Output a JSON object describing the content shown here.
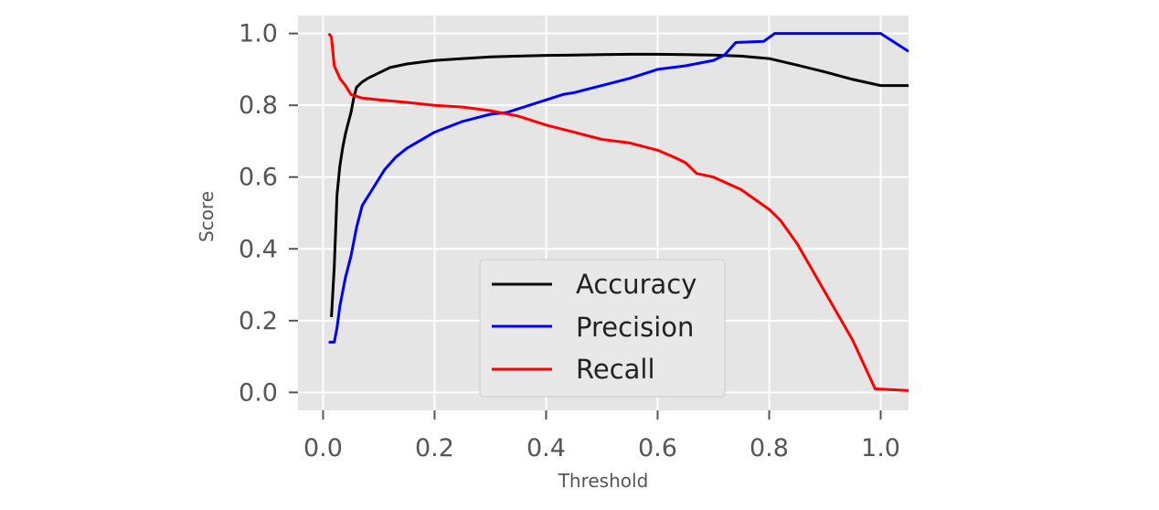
{
  "chart_data": {
    "type": "line",
    "xlabel": "Threshold",
    "ylabel": "Score",
    "xlim": [
      -0.045,
      1.05
    ],
    "ylim": [
      -0.05,
      1.05
    ],
    "xticks": [
      0.0,
      0.2,
      0.4,
      0.6,
      0.8,
      1.0
    ],
    "yticks": [
      0.0,
      0.2,
      0.4,
      0.6,
      0.8,
      1.0
    ],
    "xtick_labels": [
      "0.0",
      "0.2",
      "0.4",
      "0.6",
      "0.8",
      "1.0"
    ],
    "ytick_labels": [
      "0.0",
      "0.2",
      "0.4",
      "0.6",
      "0.8",
      "1.0"
    ],
    "grid": true,
    "legend_position": "lower center",
    "series": [
      {
        "name": "Accuracy",
        "color": "#000000",
        "points": [
          [
            0.015,
            0.21
          ],
          [
            0.02,
            0.35
          ],
          [
            0.025,
            0.55
          ],
          [
            0.03,
            0.63
          ],
          [
            0.035,
            0.68
          ],
          [
            0.04,
            0.72
          ],
          [
            0.045,
            0.75
          ],
          [
            0.05,
            0.78
          ],
          [
            0.055,
            0.82
          ],
          [
            0.06,
            0.85
          ],
          [
            0.07,
            0.865
          ],
          [
            0.08,
            0.875
          ],
          [
            0.1,
            0.89
          ],
          [
            0.12,
            0.905
          ],
          [
            0.15,
            0.915
          ],
          [
            0.2,
            0.925
          ],
          [
            0.25,
            0.93
          ],
          [
            0.3,
            0.935
          ],
          [
            0.35,
            0.937
          ],
          [
            0.4,
            0.939
          ],
          [
            0.45,
            0.94
          ],
          [
            0.5,
            0.941
          ],
          [
            0.55,
            0.942
          ],
          [
            0.6,
            0.942
          ],
          [
            0.65,
            0.941
          ],
          [
            0.7,
            0.94
          ],
          [
            0.75,
            0.937
          ],
          [
            0.8,
            0.93
          ],
          [
            0.85,
            0.912
          ],
          [
            0.9,
            0.893
          ],
          [
            0.95,
            0.872
          ],
          [
            1.0,
            0.855
          ],
          [
            1.05,
            0.855
          ]
        ]
      },
      {
        "name": "Precision",
        "color": "#0000ff",
        "points": [
          [
            0.01,
            0.14
          ],
          [
            0.02,
            0.14
          ],
          [
            0.025,
            0.18
          ],
          [
            0.03,
            0.24
          ],
          [
            0.04,
            0.32
          ],
          [
            0.05,
            0.38
          ],
          [
            0.06,
            0.46
          ],
          [
            0.07,
            0.52
          ],
          [
            0.09,
            0.57
          ],
          [
            0.11,
            0.62
          ],
          [
            0.13,
            0.655
          ],
          [
            0.15,
            0.68
          ],
          [
            0.2,
            0.725
          ],
          [
            0.25,
            0.755
          ],
          [
            0.3,
            0.775
          ],
          [
            0.33,
            0.78
          ],
          [
            0.35,
            0.79
          ],
          [
            0.4,
            0.815
          ],
          [
            0.43,
            0.83
          ],
          [
            0.45,
            0.835
          ],
          [
            0.5,
            0.855
          ],
          [
            0.55,
            0.875
          ],
          [
            0.6,
            0.9
          ],
          [
            0.65,
            0.91
          ],
          [
            0.7,
            0.925
          ],
          [
            0.72,
            0.94
          ],
          [
            0.74,
            0.975
          ],
          [
            0.79,
            0.978
          ],
          [
            0.81,
            1.0
          ],
          [
            1.0,
            1.0
          ],
          [
            1.05,
            0.95
          ]
        ]
      },
      {
        "name": "Recall",
        "color": "#ff0000",
        "points": [
          [
            0.01,
            1.0
          ],
          [
            0.015,
            0.99
          ],
          [
            0.02,
            0.91
          ],
          [
            0.03,
            0.875
          ],
          [
            0.04,
            0.855
          ],
          [
            0.05,
            0.83
          ],
          [
            0.07,
            0.82
          ],
          [
            0.1,
            0.815
          ],
          [
            0.15,
            0.808
          ],
          [
            0.2,
            0.8
          ],
          [
            0.25,
            0.795
          ],
          [
            0.3,
            0.785
          ],
          [
            0.35,
            0.77
          ],
          [
            0.4,
            0.745
          ],
          [
            0.45,
            0.725
          ],
          [
            0.5,
            0.705
          ],
          [
            0.55,
            0.695
          ],
          [
            0.6,
            0.675
          ],
          [
            0.63,
            0.655
          ],
          [
            0.65,
            0.64
          ],
          [
            0.67,
            0.61
          ],
          [
            0.7,
            0.6
          ],
          [
            0.75,
            0.565
          ],
          [
            0.8,
            0.51
          ],
          [
            0.82,
            0.48
          ],
          [
            0.85,
            0.415
          ],
          [
            0.9,
            0.28
          ],
          [
            0.95,
            0.145
          ],
          [
            0.99,
            0.01
          ],
          [
            1.05,
            0.005
          ]
        ]
      }
    ]
  }
}
